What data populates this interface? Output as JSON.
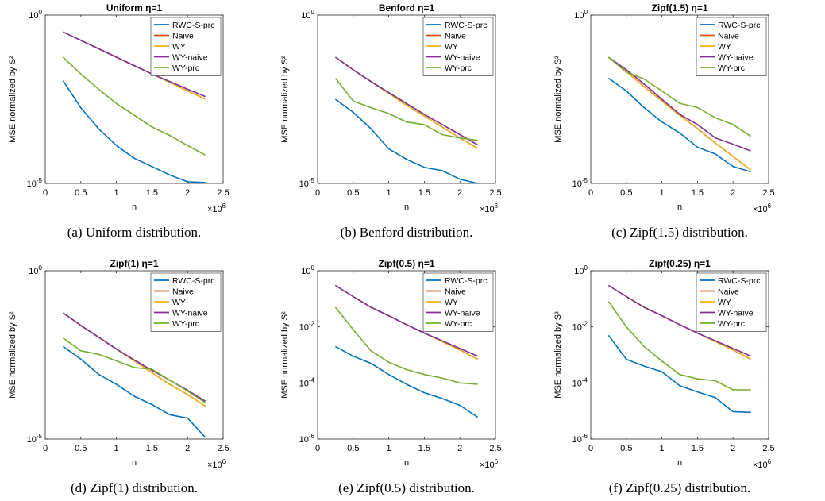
{
  "chart_data": [
    {
      "type": "line",
      "title": "Uniform η=1",
      "xlabel": "n",
      "ylabel": "MSE normalized by S²",
      "x_multiplier": "×10",
      "x_multiplier_exp": "6",
      "xlim": [
        0,
        2.5
      ],
      "y_scale": "log",
      "ylim": [
        1e-05,
        1
      ],
      "x_ticks": [
        0,
        0.5,
        1,
        1.5,
        2,
        2.5
      ],
      "x_tick_labels": [
        "0",
        "0.5",
        "1",
        "1.5",
        "2",
        "2.5"
      ],
      "y_ticks": [
        {
          "base": "10",
          "exp": "-5",
          "value": 1e-05
        },
        {
          "base": "10",
          "exp": "0",
          "value": 1
        }
      ],
      "legend_position": "top-right",
      "grid": false,
      "caption": "(a) Uniform distribution.",
      "x": [
        0.25,
        0.5,
        0.75,
        1.0,
        1.25,
        1.5,
        1.75,
        2.0,
        2.25
      ],
      "series": [
        {
          "name": "RWC-S-prc",
          "color": "#0072bd",
          "values": [
            0.0112,
            0.00178,
            0.00042,
            0.000133,
            5.6e-05,
            3.16e-05,
            1.78e-05,
            1.12e-05,
            1.06e-05
          ]
        },
        {
          "name": "Naive",
          "color": "#d95319",
          "values": [
            0.316,
            0.178,
            0.1,
            0.0562,
            0.0316,
            0.0178,
            0.01,
            0.0056,
            0.0032
          ]
        },
        {
          "name": "WY",
          "color": "#edb120",
          "values": [
            0.316,
            0.178,
            0.1,
            0.0562,
            0.0316,
            0.0178,
            0.01,
            0.0056,
            0.0032
          ]
        },
        {
          "name": "WY-naive",
          "color": "#7e2f8e",
          "values": [
            0.316,
            0.178,
            0.1,
            0.0562,
            0.0316,
            0.0178,
            0.0106,
            0.0063,
            0.0038
          ]
        },
        {
          "name": "WY-prc",
          "color": "#77ac30",
          "values": [
            0.0562,
            0.0178,
            0.0063,
            0.00237,
            0.00106,
            0.000475,
            0.000266,
            0.000133,
            7e-05
          ]
        }
      ]
    },
    {
      "type": "line",
      "title": "Benford η=1",
      "xlabel": "n",
      "ylabel": "MSE normalized by S²",
      "x_multiplier": "×10",
      "x_multiplier_exp": "6",
      "xlim": [
        0,
        2.5
      ],
      "y_scale": "log",
      "ylim": [
        1e-05,
        1
      ],
      "x_ticks": [
        0,
        0.5,
        1,
        1.5,
        2,
        2.5
      ],
      "x_tick_labels": [
        "0",
        "0.5",
        "1",
        "1.5",
        "2",
        "2.5"
      ],
      "y_ticks": [
        {
          "base": "10",
          "exp": "-5",
          "value": 1e-05
        },
        {
          "base": "10",
          "exp": "0",
          "value": 1
        }
      ],
      "legend_position": "top-right",
      "grid": false,
      "caption": "(b) Benford distribution.",
      "x": [
        0.25,
        0.5,
        0.75,
        1.0,
        1.25,
        1.5,
        1.75,
        2.0,
        2.25
      ],
      "series": [
        {
          "name": "RWC-S-prc",
          "color": "#0072bd",
          "values": [
            0.00316,
            0.0013,
            0.000422,
            0.000107,
            5.2e-05,
            3e-05,
            2.4e-05,
            1.33e-05,
            5.3e-06
          ]
        },
        {
          "name": "Naive",
          "color": "#d95319",
          "values": [
            0.0562,
            0.0237,
            0.0106,
            0.00473,
            0.00211,
            0.001,
            0.000475,
            0.000223,
            0.00011
          ]
        },
        {
          "name": "WY",
          "color": "#edb120",
          "values": [
            0.0562,
            0.0237,
            0.0106,
            0.00473,
            0.00211,
            0.001,
            0.000475,
            0.000223,
            0.00011
          ]
        },
        {
          "name": "WY-naive",
          "color": "#7e2f8e",
          "values": [
            0.0562,
            0.0237,
            0.0106,
            0.00499,
            0.00237,
            0.00112,
            0.000562,
            0.000282,
            0.00014
          ]
        },
        {
          "name": "WY-prc",
          "color": "#77ac30",
          "values": [
            0.0133,
            0.00282,
            0.00178,
            0.00119,
            0.00067,
            0.00056,
            0.000282,
            0.000224,
            0.00019
          ]
        }
      ]
    },
    {
      "type": "line",
      "title": "Zipf(1.5) η=1",
      "xlabel": "n",
      "ylabel": "MSE normalized by S²",
      "x_multiplier": "×10",
      "x_multiplier_exp": "6",
      "xlim": [
        0,
        2.5
      ],
      "y_scale": "log",
      "ylim": [
        1e-05,
        1
      ],
      "x_ticks": [
        0,
        0.5,
        1,
        1.5,
        2,
        2.5
      ],
      "x_tick_labels": [
        "0",
        "0.5",
        "1",
        "1.5",
        "2",
        "2.5"
      ],
      "y_ticks": [
        {
          "base": "10",
          "exp": "-5",
          "value": 1e-05
        },
        {
          "base": "10",
          "exp": "0",
          "value": 1
        }
      ],
      "legend_position": "top-right",
      "grid": false,
      "caption": "(c) Zipf(1.5) distribution.",
      "x": [
        0.25,
        0.5,
        0.75,
        1.0,
        1.25,
        1.5,
        1.75,
        2.0,
        2.25
      ],
      "series": [
        {
          "name": "RWC-S-prc",
          "color": "#0072bd",
          "values": [
            0.0133,
            0.0056,
            0.00178,
            0.00067,
            0.000316,
            0.000119,
            7.5e-05,
            3.2e-05,
            2.2e-05
          ]
        },
        {
          "name": "Naive",
          "color": "#d95319",
          "values": [
            0.0562,
            0.0211,
            0.00751,
            0.00282,
            0.00106,
            0.000422,
            0.000159,
            6.3e-05,
            2.5e-05
          ]
        },
        {
          "name": "WY",
          "color": "#edb120",
          "values": [
            0.0562,
            0.0211,
            0.00751,
            0.00282,
            0.00106,
            0.000422,
            0.000159,
            6.3e-05,
            2.5e-05
          ]
        },
        {
          "name": "WY-naive",
          "color": "#7e2f8e",
          "values": [
            0.0562,
            0.0237,
            0.00891,
            0.00316,
            0.00113,
            0.000562,
            0.000226,
            0.000146,
            9.2e-05
          ]
        },
        {
          "name": "WY-prc",
          "color": "#77ac30",
          "values": [
            0.0562,
            0.02,
            0.0126,
            0.0056,
            0.0024,
            0.0018,
            0.000893,
            0.00056,
            0.00025
          ]
        }
      ]
    },
    {
      "type": "line",
      "title": "Zipf(1) η=1",
      "xlabel": "n",
      "ylabel": "MSE normalized by S²",
      "x_multiplier": "×10",
      "x_multiplier_exp": "6",
      "xlim": [
        0,
        2.5
      ],
      "y_scale": "log",
      "ylim": [
        1e-05,
        1
      ],
      "x_ticks": [
        0,
        0.5,
        1,
        1.5,
        2,
        2.5
      ],
      "x_tick_labels": [
        "0",
        "0.5",
        "1",
        "1.5",
        "2",
        "2.5"
      ],
      "y_ticks": [
        {
          "base": "10",
          "exp": "-5",
          "value": 1e-05
        },
        {
          "base": "10",
          "exp": "0",
          "value": 1
        }
      ],
      "legend_position": "top-right",
      "grid": false,
      "caption": "(d) Zipf(1) distribution.",
      "x": [
        0.25,
        0.5,
        0.75,
        1.0,
        1.25,
        1.5,
        1.75,
        2.0,
        2.25
      ],
      "series": [
        {
          "name": "RWC-S-prc",
          "color": "#0072bd",
          "values": [
            0.00562,
            0.00237,
            0.00084,
            0.000422,
            0.000188,
            0.000106,
            5.3e-05,
            4.2e-05,
            1.12e-05
          ]
        },
        {
          "name": "Naive",
          "color": "#d95319",
          "values": [
            0.0562,
            0.0237,
            0.0106,
            0.00473,
            0.00211,
            0.00094,
            0.00042,
            0.000211,
            9.5e-05
          ]
        },
        {
          "name": "WY",
          "color": "#edb120",
          "values": [
            0.0562,
            0.0237,
            0.0106,
            0.00473,
            0.00211,
            0.00094,
            0.00042,
            0.000211,
            9.5e-05
          ]
        },
        {
          "name": "WY-naive",
          "color": "#7e2f8e",
          "values": [
            0.0562,
            0.0237,
            0.0106,
            0.00473,
            0.00224,
            0.0011,
            0.00056,
            0.000282,
            0.000133
          ]
        },
        {
          "name": "WY-prc",
          "color": "#77ac30",
          "values": [
            0.01,
            0.0042,
            0.0033,
            0.0021,
            0.00133,
            0.00119,
            0.000562,
            0.000266,
            0.00012
          ]
        }
      ]
    },
    {
      "type": "line",
      "title": "Zipf(0.5) η=1",
      "xlabel": "n",
      "ylabel": "MSE normalized by S²",
      "x_multiplier": "×10",
      "x_multiplier_exp": "6",
      "xlim": [
        0,
        2.5
      ],
      "y_scale": "log",
      "ylim": [
        1e-06,
        1
      ],
      "x_ticks": [
        0,
        0.5,
        1,
        1.5,
        2,
        2.5
      ],
      "x_tick_labels": [
        "0",
        "0.5",
        "1",
        "1.5",
        "2",
        "2.5"
      ],
      "y_ticks": [
        {
          "base": "10",
          "exp": "-6",
          "value": 1e-06
        },
        {
          "base": "10",
          "exp": "-4",
          "value": 0.0001
        },
        {
          "base": "10",
          "exp": "-2",
          "value": 0.01
        },
        {
          "base": "10",
          "exp": "0",
          "value": 1
        }
      ],
      "legend_position": "top-right",
      "grid": false,
      "caption": "(e) Zipf(0.5) distribution.",
      "x": [
        0.25,
        0.5,
        0.75,
        1.0,
        1.25,
        1.5,
        1.75,
        2.0,
        2.25
      ],
      "series": [
        {
          "name": "RWC-S-prc",
          "color": "#0072bd",
          "values": [
            0.002,
            0.0009,
            0.0005,
            0.0002,
            9e-05,
            4.5e-05,
            2.8e-05,
            1.6e-05,
            6e-06
          ]
        },
        {
          "name": "Naive",
          "color": "#d95319",
          "values": [
            0.3,
            0.12,
            0.05,
            0.025,
            0.012,
            0.006,
            0.003,
            0.0015,
            0.0007
          ]
        },
        {
          "name": "WY",
          "color": "#edb120",
          "values": [
            0.3,
            0.12,
            0.05,
            0.025,
            0.012,
            0.006,
            0.003,
            0.0015,
            0.0007
          ]
        },
        {
          "name": "WY-naive",
          "color": "#7e2f8e",
          "values": [
            0.3,
            0.12,
            0.05,
            0.025,
            0.012,
            0.006,
            0.0032,
            0.0017,
            0.0009
          ]
        },
        {
          "name": "WY-prc",
          "color": "#77ac30",
          "values": [
            0.05,
            0.008,
            0.0014,
            0.00055,
            0.0003,
            0.0002,
            0.00015,
            0.0001,
            9e-05
          ]
        }
      ]
    },
    {
      "type": "line",
      "title": "Zipf(0.25) η=1",
      "xlabel": "n",
      "ylabel": "MSE normalized by S²",
      "x_multiplier": "×10",
      "x_multiplier_exp": "6",
      "xlim": [
        0,
        2.5
      ],
      "y_scale": "log",
      "ylim": [
        1e-06,
        1
      ],
      "x_ticks": [
        0,
        0.5,
        1,
        1.5,
        2,
        2.5
      ],
      "x_tick_labels": [
        "0",
        "0.5",
        "1",
        "1.5",
        "2",
        "2.5"
      ],
      "y_ticks": [
        {
          "base": "10",
          "exp": "-6",
          "value": 1e-06
        },
        {
          "base": "10",
          "exp": "-4",
          "value": 0.0001
        },
        {
          "base": "10",
          "exp": "-2",
          "value": 0.01
        },
        {
          "base": "10",
          "exp": "0",
          "value": 1
        }
      ],
      "legend_position": "top-right",
      "grid": false,
      "caption": "(f) Zipf(0.25) distribution.",
      "x": [
        0.25,
        0.5,
        0.75,
        1.0,
        1.25,
        1.5,
        1.75,
        2.0,
        2.25
      ],
      "series": [
        {
          "name": "RWC-S-prc",
          "color": "#0072bd",
          "values": [
            0.005,
            0.0007,
            0.0004,
            0.00025,
            8e-05,
            4.8e-05,
            3e-05,
            9.5e-06,
            9e-06
          ]
        },
        {
          "name": "Naive",
          "color": "#d95319",
          "values": [
            0.3,
            0.12,
            0.05,
            0.025,
            0.012,
            0.006,
            0.003,
            0.0015,
            0.0007
          ]
        },
        {
          "name": "WY",
          "color": "#edb120",
          "values": [
            0.3,
            0.12,
            0.05,
            0.025,
            0.012,
            0.006,
            0.003,
            0.0015,
            0.0007
          ]
        },
        {
          "name": "WY-naive",
          "color": "#7e2f8e",
          "values": [
            0.3,
            0.12,
            0.05,
            0.025,
            0.012,
            0.006,
            0.0032,
            0.0017,
            0.0009
          ]
        },
        {
          "name": "WY-prc",
          "color": "#77ac30",
          "values": [
            0.08,
            0.01,
            0.002,
            0.0006,
            0.0002,
            0.00014,
            0.00012,
            5.7e-05,
            5.7e-05
          ]
        }
      ]
    }
  ]
}
